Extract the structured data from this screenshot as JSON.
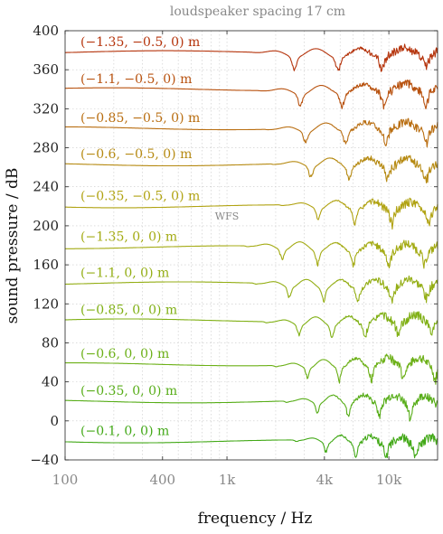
{
  "chart_data": {
    "type": "line",
    "title": "loudspeaker spacing 17 cm",
    "xlabel": "frequency / Hz",
    "ylabel": "sound pressure / dB",
    "xscale": "log",
    "xlim": [
      100,
      20000
    ],
    "ylim": [
      -40,
      400
    ],
    "grid": true,
    "xticks": [
      {
        "value": 100,
        "label": "100"
      },
      {
        "value": 400,
        "label": "400"
      },
      {
        "value": 1000,
        "label": "1k"
      },
      {
        "value": 4000,
        "label": "4k"
      },
      {
        "value": 10000,
        "label": "10k"
      }
    ],
    "yticks": [
      {
        "value": 400,
        "label": "400"
      },
      {
        "value": 360,
        "label": "360"
      },
      {
        "value": 320,
        "label": "320"
      },
      {
        "value": 280,
        "label": "280"
      },
      {
        "value": 240,
        "label": "240"
      },
      {
        "value": 200,
        "label": "200"
      },
      {
        "value": 160,
        "label": "160"
      },
      {
        "value": 120,
        "label": "120"
      },
      {
        "value": 80,
        "label": "80"
      },
      {
        "value": 40,
        "label": "40"
      },
      {
        "value": 0,
        "label": "0"
      },
      {
        "value": -40,
        "label": "−40"
      }
    ],
    "annotations": [
      {
        "text": "WFS",
        "x": 1000,
        "y": 210
      }
    ],
    "series": [
      {
        "name": "(−1.35, −0.5, 0) m",
        "color": "#b5340c",
        "offset": 378,
        "dip": 1900
      },
      {
        "name": "(−1.1, −0.5, 0) m",
        "color": "#b8520f",
        "offset": 340,
        "dip": 2100
      },
      {
        "name": "(−0.85, −0.5, 0) m",
        "color": "#b96e11",
        "offset": 300,
        "dip": 2300
      },
      {
        "name": "(−0.6, −0.5, 0) m",
        "color": "#b68a12",
        "offset": 263,
        "dip": 2500
      },
      {
        "name": "(−0.35, −0.5, 0) m",
        "color": "#b1a313",
        "offset": 220,
        "dip": 2800
      },
      {
        "name": "(−1.35, 0, 0) m",
        "color": "#a4ab14",
        "offset": 178,
        "dip": 1700
      },
      {
        "name": "(−1.1, 0, 0) m",
        "color": "#94ae15",
        "offset": 141,
        "dip": 1900
      },
      {
        "name": "(−0.85, 0, 0) m",
        "color": "#80b015",
        "offset": 103,
        "dip": 2200
      },
      {
        "name": "(−0.6, 0, 0) m",
        "color": "#6cb017",
        "offset": 58,
        "dip": 2500
      },
      {
        "name": "(−0.35, 0, 0) m",
        "color": "#57ad18",
        "offset": 20,
        "dip": 2900
      },
      {
        "name": "(−0.1, 0, 0) m",
        "color": "#43a918",
        "offset": -21,
        "dip": 3300
      }
    ]
  }
}
